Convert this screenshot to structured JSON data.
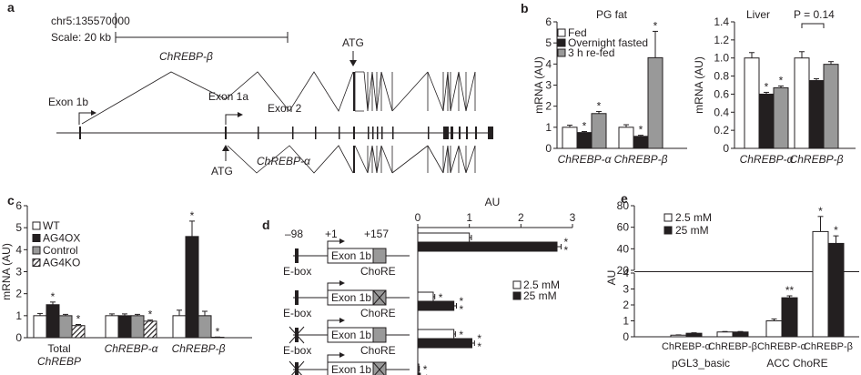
{
  "panels": {
    "a": {
      "letter": "a",
      "coord": "chr5:135570000",
      "scale": "Scale: 20 kb",
      "gene_beta": "ChREBP-β",
      "gene_alpha": "ChREBP-α",
      "atg_top": "ATG",
      "atg_bottom": "ATG",
      "exon1b": "Exon 1b",
      "exon1a": "Exon 1a",
      "exon2": "Exon 2"
    },
    "d": {
      "letter": "d",
      "m98": "–98",
      "p1": "+1",
      "p157": "+157",
      "ebox": "E-box",
      "exon1b": "Exon 1b",
      "chore": "ChoRE",
      "axis_title": "AU"
    }
  },
  "chart_data": [
    {
      "id": "b1",
      "letter": "b",
      "type": "bar",
      "title": "PG fat",
      "ylabel": "mRNA (AU)",
      "ylim": [
        0,
        6
      ],
      "yticks": [
        "0",
        "1",
        "2",
        "3",
        "4",
        "5",
        "6"
      ],
      "categories": [
        "ChREBP-α",
        "ChREBP-β"
      ],
      "series": [
        {
          "name": "Fed",
          "fill": "#ffffff",
          "values": [
            1.0,
            1.0
          ],
          "errors": [
            0.1,
            0.12
          ],
          "stars": [
            "",
            ""
          ]
        },
        {
          "name": "Overnight fasted",
          "fill": "#231f20",
          "values": [
            0.75,
            0.57
          ],
          "errors": [
            0.05,
            0.05
          ],
          "stars": [
            "*",
            "*"
          ]
        },
        {
          "name": "3 h re-fed",
          "fill": "#999999",
          "values": [
            1.65,
            4.3
          ],
          "errors": [
            0.1,
            1.25
          ],
          "stars": [
            "*",
            "*"
          ]
        }
      ]
    },
    {
      "id": "b2",
      "type": "bar",
      "title": "Liver",
      "annotation": "P = 0.14",
      "ylabel": "mRNA (AU)",
      "ylim": [
        0,
        1.4
      ],
      "yticks": [
        "0",
        "0.2",
        "0.4",
        "0.6",
        "0.8",
        "1.0",
        "1.2",
        "1.4"
      ],
      "categories": [
        "ChREBP-α",
        "ChREBP-β"
      ],
      "series": [
        {
          "name": "Fed",
          "fill": "#ffffff",
          "values": [
            1.0,
            1.0
          ],
          "errors": [
            0.06,
            0.07
          ],
          "stars": [
            "",
            ""
          ]
        },
        {
          "name": "Overnight fasted",
          "fill": "#231f20",
          "values": [
            0.6,
            0.75
          ],
          "errors": [
            0.02,
            0.02
          ],
          "stars": [
            "*",
            ""
          ]
        },
        {
          "name": "3 h re-fed",
          "fill": "#999999",
          "values": [
            0.67,
            0.93
          ],
          "errors": [
            0.02,
            0.03
          ],
          "stars": [
            "*",
            ""
          ]
        }
      ]
    },
    {
      "id": "c",
      "letter": "c",
      "type": "bar",
      "ylabel": "mRNA (AU)",
      "ylim": [
        0,
        6
      ],
      "yticks": [
        "0",
        "1",
        "2",
        "3",
        "4",
        "5",
        "6"
      ],
      "categories": [
        "Total ChREBP",
        "ChREBP-α",
        "ChREBP-β"
      ],
      "category_lines": [
        [
          "Total",
          "ChREBP"
        ],
        [
          "ChREBP-α"
        ],
        [
          "ChREBP-β"
        ]
      ],
      "series": [
        {
          "name": "WT",
          "fill": "#ffffff",
          "values": [
            1.0,
            1.0,
            1.0
          ],
          "errors": [
            0.1,
            0.08,
            0.25
          ],
          "stars": [
            "",
            "",
            ""
          ]
        },
        {
          "name": "AG4OX",
          "fill": "#231f20",
          "values": [
            1.5,
            1.0,
            4.6
          ],
          "errors": [
            0.12,
            0.08,
            0.7
          ],
          "stars": [
            "*",
            "",
            "*"
          ]
        },
        {
          "name": "Control",
          "fill": "#999999",
          "values": [
            1.0,
            1.0,
            1.0
          ],
          "errors": [
            0.06,
            0.06,
            0.2
          ],
          "stars": [
            "",
            "",
            ""
          ]
        },
        {
          "name": "AG4KO",
          "fill": "hatch",
          "values": [
            0.55,
            0.75,
            0.02
          ],
          "errors": [
            0.05,
            0.05,
            0.01
          ],
          "stars": [
            "*",
            "*",
            "*"
          ]
        }
      ]
    },
    {
      "id": "d",
      "type": "bar",
      "orientation": "horizontal",
      "xlabel": "AU",
      "xlim": [
        0,
        3
      ],
      "xticks": [
        "0",
        "1",
        "2",
        "3"
      ],
      "categories": [
        "Wild-type construct",
        "ChoRE mutated",
        "E-box mutated",
        "E-box and ChoRE mutated"
      ],
      "series": [
        {
          "name": "2.5 mM",
          "fill": "#ffffff",
          "values": [
            1.0,
            0.3,
            0.7,
            0.02
          ],
          "errors": [
            0.04,
            0.03,
            0.03,
            0.01
          ],
          "stars": [
            "",
            "*",
            "*",
            "*"
          ]
        },
        {
          "name": "25 mM",
          "fill": "#231f20",
          "values": [
            2.7,
            0.7,
            1.05,
            0.05
          ],
          "errors": [
            0.08,
            0.05,
            0.05,
            0.01
          ],
          "stars": [
            "**",
            "**",
            "**",
            "*"
          ]
        }
      ]
    },
    {
      "id": "e",
      "letter": "e",
      "type": "bar",
      "ylabel": "AU",
      "broken_axis": true,
      "ylim_lower": [
        0,
        4
      ],
      "yticks_lower": [
        "0",
        "1",
        "2",
        "3",
        "4"
      ],
      "ylim_upper": [
        20,
        80
      ],
      "yticks_upper": [
        "20",
        "40",
        "60",
        "80"
      ],
      "categories": [
        "ChREBP-α",
        "ChREBP-β",
        "ChREBP-α",
        "ChREBP-β"
      ],
      "groups": [
        "pGL3_basic",
        "ACC ChoRE"
      ],
      "series": [
        {
          "name": "2.5 mM",
          "fill": "#ffffff",
          "values": [
            0.1,
            0.3,
            1.0,
            56
          ],
          "errors": [
            0.02,
            0.03,
            0.12,
            14
          ],
          "stars": [
            "",
            "",
            "",
            "*"
          ]
        },
        {
          "name": "25 mM",
          "fill": "#231f20",
          "values": [
            0.22,
            0.3,
            2.45,
            45
          ],
          "errors": [
            0.03,
            0.03,
            0.12,
            7
          ],
          "stars": [
            "",
            "",
            "**",
            "*"
          ]
        }
      ]
    }
  ]
}
